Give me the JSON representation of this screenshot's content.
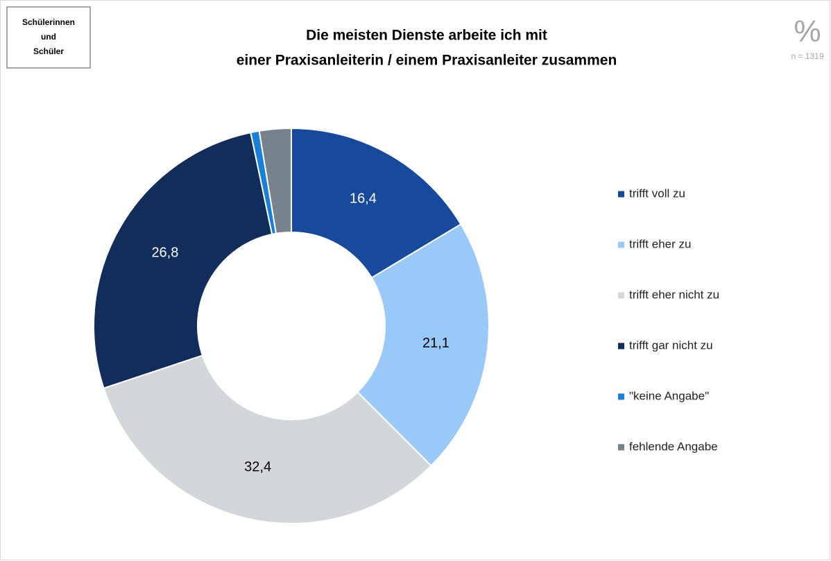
{
  "chart_data": {
    "type": "donut",
    "badge": [
      "Schülerinnen",
      "und",
      "Schüler"
    ],
    "title": [
      "Die meisten Dienste arbeite ich mit",
      "einer Praxisanleiterin / einem Praxisanleiter zusammen"
    ],
    "unit": "%",
    "sample": "n = 1319",
    "categories": [
      "trifft voll zu",
      "trifft eher zu",
      "trifft eher nicht zu",
      "trifft gar nicht zu",
      "\"keine Angabe\"",
      "fehlende Angabe"
    ],
    "values": [
      16.4,
      21.1,
      32.4,
      26.8,
      0.7,
      2.6
    ],
    "value_labels": [
      "16,4",
      "21,1",
      "32,4",
      "26,8",
      null,
      null
    ],
    "colors": [
      "#174a9c",
      "#99c9f8",
      "#d3d6db",
      "#102d5c",
      "#1a7fdb",
      "#78828c"
    ],
    "legend": "right"
  }
}
